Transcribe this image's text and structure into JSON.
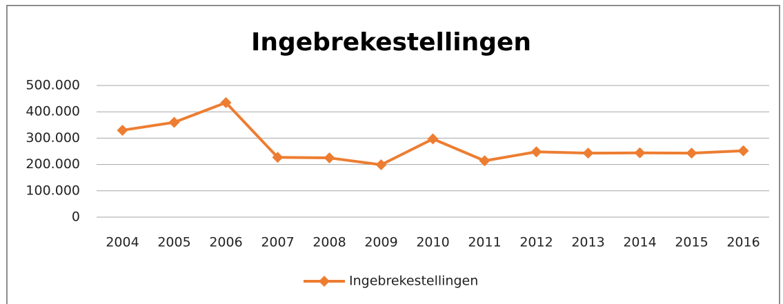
{
  "chart_data": {
    "type": "line",
    "title": "Ingebrekestellingen",
    "categories": [
      "2004",
      "2005",
      "2006",
      "2007",
      "2008",
      "2009",
      "2010",
      "2011",
      "2012",
      "2013",
      "2014",
      "2015",
      "2016"
    ],
    "series": [
      {
        "name": "Ingebrekestellingen",
        "color": "#ed7d31",
        "values": [
          330000,
          360000,
          435000,
          227000,
          225000,
          199000,
          297000,
          214000,
          248000,
          243000,
          244000,
          243000,
          252000
        ]
      }
    ],
    "ylim": [
      0,
      500000
    ],
    "yticks": [
      0,
      {
        "value": 100000,
        "label": "100.000"
      },
      {
        "value": 200000,
        "label": "200.000"
      },
      {
        "value": 300000,
        "label": "300.000"
      },
      {
        "value": 400000,
        "label": "400.000"
      },
      {
        "value": 500000,
        "label": "500.000"
      }
    ],
    "grid": true,
    "legend": "bottom"
  }
}
